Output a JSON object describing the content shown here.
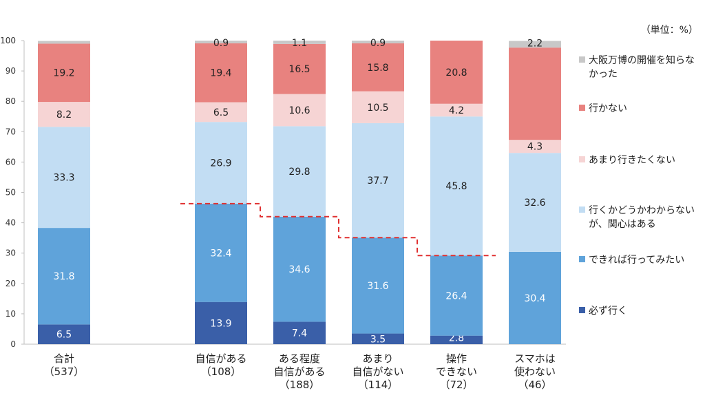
{
  "chart_data": {
    "type": "bar",
    "stacked": true,
    "unit_label": "（単位：%）",
    "ylim": [
      0,
      100
    ],
    "yticks": [
      0,
      10,
      20,
      30,
      40,
      50,
      60,
      70,
      80,
      90,
      100
    ],
    "categories": [
      [
        "合計",
        "（537）"
      ],
      [
        "自信がある",
        "（108）"
      ],
      [
        "ある程度",
        "自信がある",
        "（188）"
      ],
      [
        "あまり",
        "自信がない",
        "（114）"
      ],
      [
        "操作",
        "できない",
        "（72）"
      ],
      [
        "スマホは",
        "使わない",
        "（46）"
      ]
    ],
    "series": [
      {
        "name": "必ず行く",
        "color": "#3a5fa8",
        "label_color": "#ffffff",
        "values": [
          6.5,
          13.9,
          7.4,
          3.5,
          2.8,
          0
        ]
      },
      {
        "name": "できれば行ってみたい",
        "color": "#5fa3da",
        "label_color": "#ffffff",
        "values": [
          31.8,
          32.4,
          34.6,
          31.6,
          26.4,
          30.4
        ]
      },
      {
        "name": "行くかどうかわからないが、関心はある",
        "color": "#c2ddf3",
        "label_color": "#222222",
        "values": [
          33.3,
          26.9,
          29.8,
          37.7,
          45.8,
          32.6
        ]
      },
      {
        "name": "あまり行きたくない",
        "color": "#f6d4d4",
        "label_color": "#222222",
        "values": [
          8.2,
          6.5,
          10.6,
          10.5,
          4.2,
          4.3
        ]
      },
      {
        "name": "行かない",
        "color": "#e8827f",
        "label_color": "#222222",
        "values": [
          19.2,
          19.4,
          16.5,
          15.8,
          20.8,
          30.4
        ]
      },
      {
        "name": "大阪万博の開催を知らなかった",
        "color": "#c8c8c8",
        "label_color": "#222222",
        "values": [
          0.9,
          0.9,
          1.1,
          0.9,
          0,
          2.2
        ]
      }
    ],
    "hidden_labels": [
      [
        5,
        0
      ],
      [
        4,
        5
      ]
    ],
    "legend": [
      {
        "series": 5,
        "lines": [
          "大阪万博の開催を知らな",
          "かった"
        ]
      },
      {
        "series": 4,
        "lines": [
          "行かない"
        ]
      },
      {
        "series": 3,
        "lines": [
          "あまり行きたくない"
        ]
      },
      {
        "series": 2,
        "lines": [
          "行くかどうかわからない",
          "が、関心はある"
        ]
      },
      {
        "series": 1,
        "lines": [
          "できれば行ってみたい"
        ]
      },
      {
        "series": 0,
        "lines": [
          "必ず行く"
        ]
      }
    ],
    "legend_placement": "right",
    "grid": false,
    "annotation": {
      "type": "step-line",
      "style": "dashed",
      "color": "#e03030",
      "over_categories": [
        1,
        2,
        3,
        4
      ]
    }
  }
}
